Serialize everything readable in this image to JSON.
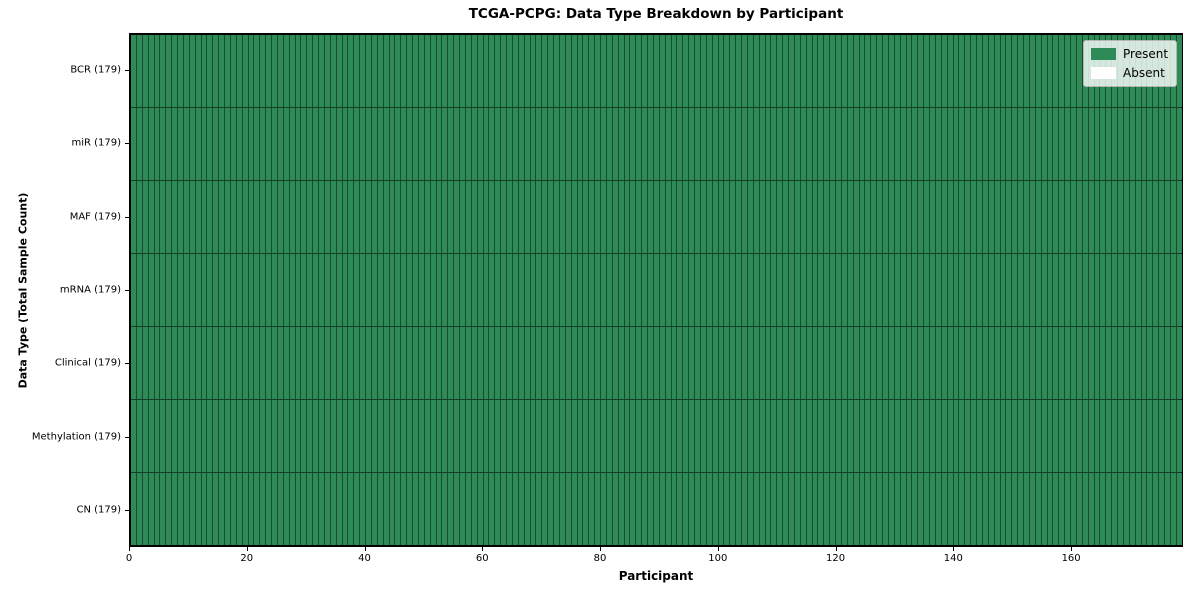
{
  "chart_data": {
    "type": "heatmap",
    "title": "TCGA-PCPG: Data Type Breakdown by Participant",
    "xlabel": "Participant",
    "ylabel": "Data Type (Total Sample Count)",
    "xlim": [
      0,
      179
    ],
    "x_ticks": [
      0,
      20,
      40,
      60,
      80,
      100,
      120,
      140,
      160
    ],
    "n_participants": 179,
    "rows": [
      {
        "data_type": "BCR",
        "label": "BCR (179)",
        "total_sample_count": 179,
        "present": 179,
        "absent": 0
      },
      {
        "data_type": "miR",
        "label": "miR (179)",
        "total_sample_count": 179,
        "present": 179,
        "absent": 0
      },
      {
        "data_type": "MAF",
        "label": "MAF (179)",
        "total_sample_count": 179,
        "present": 179,
        "absent": 0
      },
      {
        "data_type": "mRNA",
        "label": "mRNA (179)",
        "total_sample_count": 179,
        "present": 179,
        "absent": 0
      },
      {
        "data_type": "Clinical",
        "label": "Clinical (179)",
        "total_sample_count": 179,
        "present": 179,
        "absent": 0
      },
      {
        "data_type": "Methylation",
        "label": "Methylation (179)",
        "total_sample_count": 179,
        "present": 179,
        "absent": 0
      },
      {
        "data_type": "CN",
        "label": "CN (179)",
        "total_sample_count": 179,
        "present": 179,
        "absent": 0
      }
    ],
    "legend": {
      "position": "upper right",
      "entries": [
        {
          "name": "present",
          "label": "Present",
          "color": "#2e8b57"
        },
        {
          "name": "absent",
          "label": "Absent",
          "color": "#ffffff"
        }
      ]
    },
    "colors": {
      "present": "#2e8b57",
      "absent": "#ffffff",
      "cell_edge": "rgba(0,0,0,0.45)",
      "row_edge": "rgba(0,0,0,0.55)",
      "spine": "#000000",
      "background": "#ffffff"
    },
    "grid": false
  }
}
